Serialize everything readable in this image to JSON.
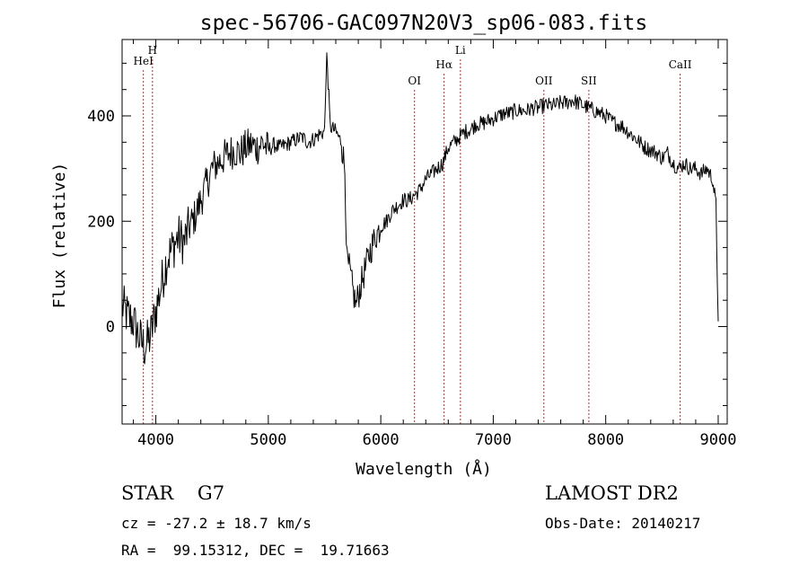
{
  "chart_data": {
    "type": "line",
    "title": "spec-56706-GAC097N20V3_sp06-083.fits",
    "xlabel": "Wavelength (Å)",
    "ylabel": "Flux (relative)",
    "xlim": [
      3700,
      9080
    ],
    "ylim": [
      -185,
      545
    ],
    "xticks": [
      4000,
      5000,
      6000,
      7000,
      8000,
      9000
    ],
    "xtick_labels": [
      "4000",
      "5000",
      "6000",
      "7000",
      "8000",
      "9000"
    ],
    "yticks": [
      0,
      200,
      400
    ],
    "ytick_labels": [
      "0",
      "200",
      "400"
    ],
    "grid": false,
    "line_color": "#000000",
    "marker_color": "#b03030",
    "lines": [
      {
        "label": "HeI",
        "x": 3889
      },
      {
        "label": "H",
        "x": 3970
      },
      {
        "label": "OI",
        "x": 6300
      },
      {
        "label": "Hα",
        "x": 6563
      },
      {
        "label": "Li",
        "x": 6708
      },
      {
        "label": "OII",
        "x": 7450
      },
      {
        "label": "SII",
        "x": 7850
      },
      {
        "label": "CaII",
        "x": 8662
      }
    ],
    "series": [
      {
        "x": [
          3700,
          3750,
          3800,
          3850,
          3900,
          3950,
          4000,
          4050,
          4100,
          4150,
          4200,
          4250,
          4300,
          4350,
          4400,
          4450,
          4500,
          4550,
          4600,
          4650,
          4700,
          4750,
          4800,
          4850,
          4900,
          4950,
          5000,
          5050,
          5100,
          5150,
          5200,
          5250,
          5300,
          5350,
          5400,
          5450,
          5500,
          5520,
          5550,
          5600,
          5650,
          5680,
          5700,
          5720,
          5750,
          5780,
          5800,
          5850,
          5900,
          5950,
          6000,
          6050,
          6100,
          6150,
          6200,
          6250,
          6300,
          6350,
          6400,
          6450,
          6500,
          6550,
          6600,
          6650,
          6700,
          6750,
          6800,
          6850,
          6900,
          6950,
          7000,
          7050,
          7100,
          7150,
          7200,
          7250,
          7300,
          7350,
          7400,
          7450,
          7500,
          7550,
          7600,
          7650,
          7700,
          7750,
          7800,
          7850,
          7900,
          7950,
          8000,
          8050,
          8100,
          8150,
          8200,
          8250,
          8300,
          8350,
          8400,
          8450,
          8500,
          8550,
          8600,
          8650,
          8700,
          8750,
          8800,
          8850,
          8900,
          8950,
          8980,
          9000
        ],
        "y": [
          40,
          20,
          10,
          -20,
          -40,
          -20,
          30,
          80,
          130,
          150,
          170,
          160,
          190,
          210,
          240,
          270,
          300,
          310,
          320,
          330,
          335,
          330,
          340,
          345,
          340,
          350,
          335,
          345,
          340,
          345,
          350,
          355,
          360,
          350,
          355,
          365,
          370,
          520,
          380,
          370,
          350,
          300,
          120,
          110,
          70,
          40,
          60,
          100,
          140,
          170,
          190,
          200,
          220,
          230,
          240,
          240,
          250,
          260,
          280,
          290,
          300,
          310,
          340,
          350,
          360,
          370,
          375,
          385,
          385,
          390,
          395,
          400,
          405,
          405,
          410,
          410,
          410,
          415,
          415,
          420,
          420,
          420,
          425,
          425,
          430,
          425,
          420,
          415,
          410,
          405,
          400,
          390,
          385,
          380,
          370,
          360,
          350,
          340,
          335,
          330,
          320,
          330,
          310,
          300,
          310,
          300,
          300,
          290,
          300,
          280,
          230,
          10
        ]
      }
    ]
  },
  "info": {
    "class_line": "STAR    G7",
    "survey": "LAMOST DR2",
    "cz": "cz = -27.2 ± 18.7 km/s",
    "obs_date": "Obs-Date: 20140217",
    "coords": "RA =  99.15312, DEC =  19.71663"
  }
}
